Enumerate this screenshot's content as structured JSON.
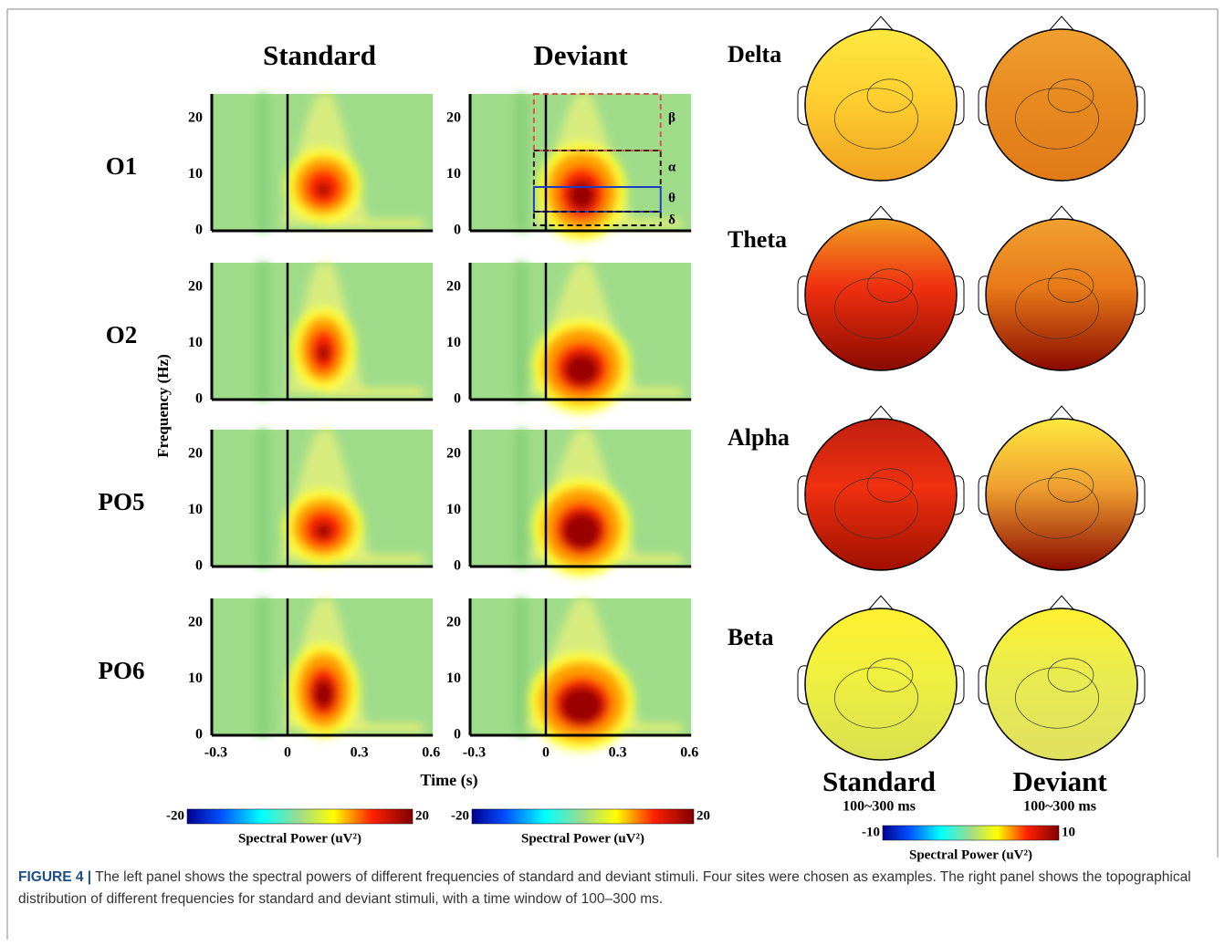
{
  "left_panel": {
    "columns": [
      "Standard",
      "Deviant"
    ],
    "rows": [
      "O1",
      "O2",
      "PO5",
      "PO6"
    ],
    "y_label": "Frequency (Hz)",
    "yticks": [
      0,
      10,
      20
    ],
    "xticks": [
      -0.3,
      0,
      0.3,
      0.6
    ],
    "x_label": "Time (s)",
    "band_labels": [
      "β",
      "α",
      "θ",
      "δ"
    ],
    "colorbars": [
      {
        "min": -20,
        "max": 20,
        "label": "Spectral Power (uV²)"
      },
      {
        "min": -20,
        "max": 20,
        "label": "Spectral Power (uV²)"
      }
    ]
  },
  "right_panel": {
    "bands": [
      "Delta",
      "Theta",
      "Alpha",
      "Beta"
    ],
    "columns": [
      {
        "title": "Standard",
        "window": "100~300 ms"
      },
      {
        "title": "Deviant",
        "window": "100~300 ms"
      }
    ],
    "colorbar": {
      "min": -10,
      "max": 10,
      "label": "Spectral Power (uV²)"
    }
  },
  "caption": {
    "label": "FIGURE 4 |",
    "text": "The left panel shows the spectral powers of different frequencies of standard and deviant stimuli. Four sites were chosen as examples. The right panel shows the topographical distribution of different frequencies for standard and deviant stimuli, with a time window of 100–300 ms."
  }
}
